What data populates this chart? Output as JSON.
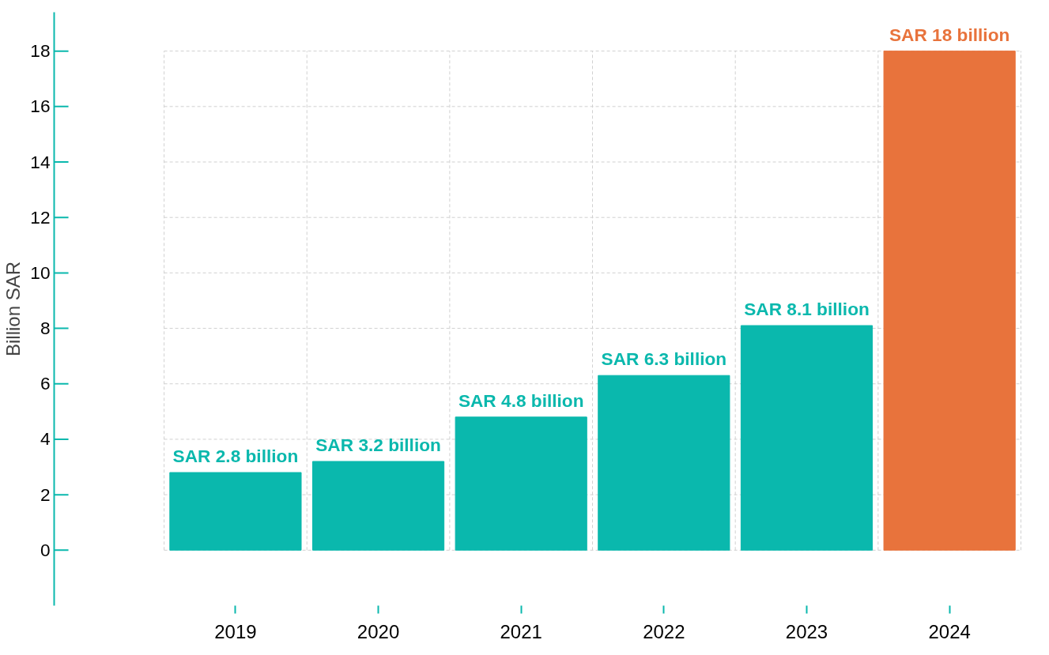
{
  "chart_data": {
    "type": "bar",
    "ylabel": "Billion SAR",
    "categories": [
      "2019",
      "2020",
      "2021",
      "2022",
      "2023",
      "2024"
    ],
    "values": [
      2.8,
      3.2,
      4.8,
      6.3,
      8.1,
      18
    ],
    "colors": [
      "#0ab8ad",
      "#0ab8ad",
      "#0ab8ad",
      "#0ab8ad",
      "#0ab8ad",
      "#e8733c"
    ],
    "value_labels": [
      "SAR 2.8 billion",
      "SAR 3.2 billion",
      "SAR 4.8 billion",
      "SAR 6.3 billion",
      "SAR 8.1 billion",
      "SAR 18 billion"
    ],
    "ylim": [
      -2,
      19.4
    ],
    "yticks": [
      0,
      2,
      4,
      6,
      8,
      10,
      12,
      14,
      16,
      18
    ],
    "grid": true
  }
}
